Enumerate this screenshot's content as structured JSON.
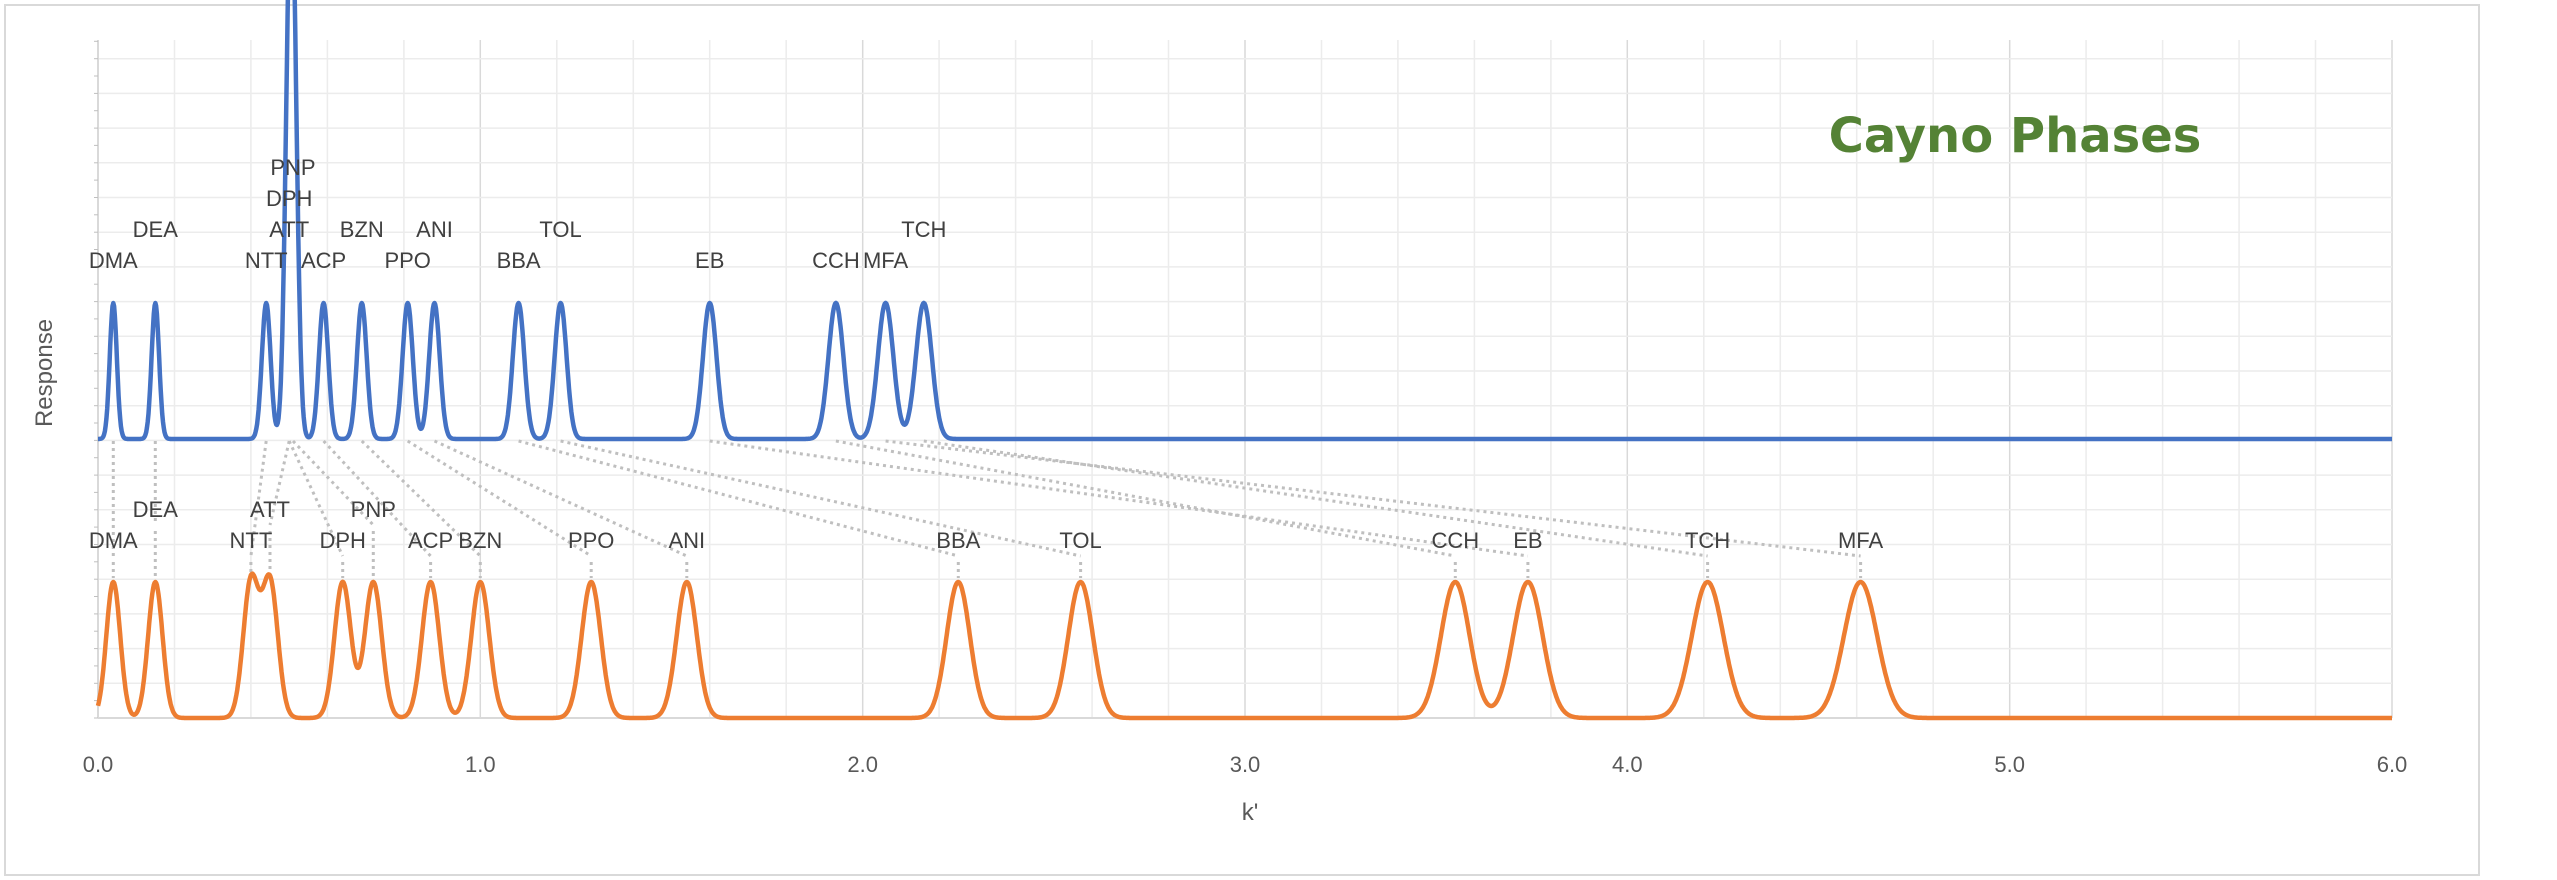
{
  "chart_data": {
    "type": "line",
    "title": "Cayno Phases",
    "title_color": "#548235",
    "xlabel": "k'",
    "ylabel": "Response",
    "xlim": [
      0.0,
      6.0
    ],
    "x_ticks": [
      "0.0",
      "1.0",
      "2.0",
      "3.0",
      "4.0",
      "5.0",
      "6.0"
    ],
    "grid": true,
    "legend": "none",
    "series": [
      {
        "color": "#4472C4",
        "baseline": 0.0,
        "peaks": [
          {
            "label": "DMA",
            "k": 0.04,
            "height": 1.0
          },
          {
            "label": "DEA",
            "k": 0.15,
            "height": 1.0
          },
          {
            "label": "NTT",
            "k": 0.44,
            "height": 1.0
          },
          {
            "label": "ATT",
            "k": 0.5,
            "height": 1.0
          },
          {
            "label": "DPH",
            "k": 0.5,
            "height": 1.0
          },
          {
            "label": "PNP",
            "k": 0.51,
            "height": 2.5
          },
          {
            "label": "ACP",
            "k": 0.59,
            "height": 1.0
          },
          {
            "label": "BZN",
            "k": 0.69,
            "height": 1.0
          },
          {
            "label": "PPO",
            "k": 0.81,
            "height": 1.0
          },
          {
            "label": "ANI",
            "k": 0.88,
            "height": 1.0
          },
          {
            "label": "BBA",
            "k": 1.1,
            "height": 1.0
          },
          {
            "label": "TOL",
            "k": 1.21,
            "height": 1.0
          },
          {
            "label": "EB",
            "k": 1.6,
            "height": 1.0
          },
          {
            "label": "CCH",
            "k": 1.93,
            "height": 1.0
          },
          {
            "label": "MFA",
            "k": 2.06,
            "height": 1.0
          },
          {
            "label": "TCH",
            "k": 2.16,
            "height": 1.0
          }
        ]
      },
      {
        "color": "#ED7D31",
        "baseline": 0.0,
        "peaks": [
          {
            "label": "DMA",
            "k": 0.04,
            "height": 1.0
          },
          {
            "label": "DEA",
            "k": 0.15,
            "height": 1.0
          },
          {
            "label": "NTT",
            "k": 0.4,
            "height": 1.0
          },
          {
            "label": "ATT",
            "k": 0.45,
            "height": 1.0
          },
          {
            "label": "DPH",
            "k": 0.64,
            "height": 1.0
          },
          {
            "label": "PNP",
            "k": 0.72,
            "height": 1.0
          },
          {
            "label": "ACP",
            "k": 0.87,
            "height": 1.0
          },
          {
            "label": "BZN",
            "k": 1.0,
            "height": 1.0
          },
          {
            "label": "PPO",
            "k": 1.29,
            "height": 1.0
          },
          {
            "label": "ANI",
            "k": 1.54,
            "height": 1.0
          },
          {
            "label": "BBA",
            "k": 2.25,
            "height": 1.0
          },
          {
            "label": "TOL",
            "k": 2.57,
            "height": 1.0
          },
          {
            "label": "CCH",
            "k": 3.55,
            "height": 1.0
          },
          {
            "label": "EB",
            "k": 3.74,
            "height": 1.0
          },
          {
            "label": "TCH",
            "k": 4.21,
            "height": 1.0
          },
          {
            "label": "MFA",
            "k": 4.61,
            "height": 1.0
          }
        ]
      }
    ],
    "connector_color": "#bfbfbf"
  }
}
